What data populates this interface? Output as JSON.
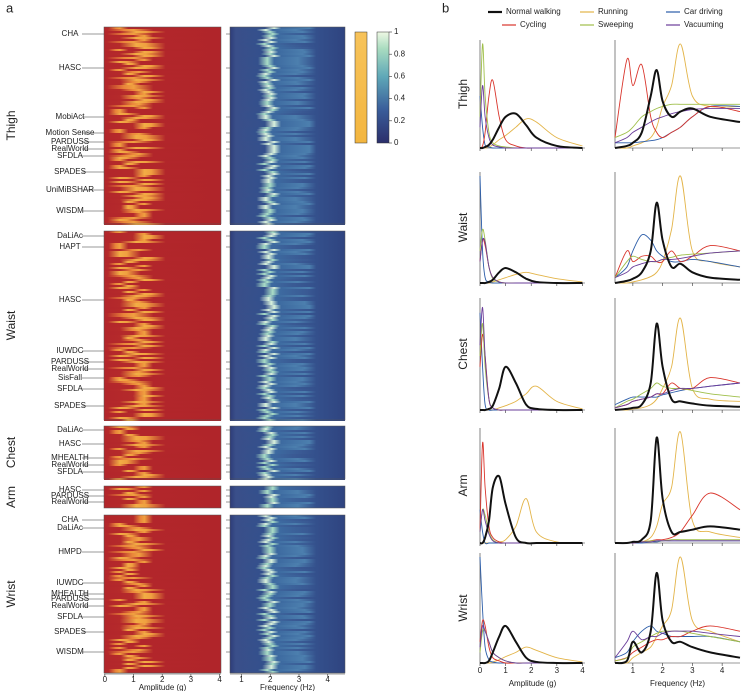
{
  "chart_data": [
    {
      "type": "heatmap",
      "panel": "a",
      "groups": [
        {
          "position": "Thigh",
          "datasets": [
            "CHA",
            "HASC",
            "MobiAct",
            "Motion Sense",
            "PARDUSS",
            "RealWorld",
            "SFDLA",
            "SPADES",
            "UniMiBSHAR",
            "WISDM"
          ]
        },
        {
          "position": "Waist",
          "datasets": [
            "DaLiAc",
            "HAPT",
            "HASC",
            "IUWDC",
            "PARDUSS",
            "RealWorld",
            "SisFall",
            "SFDLA",
            "SPADES"
          ]
        },
        {
          "position": "Chest",
          "datasets": [
            "DaLiAc",
            "HASC",
            "MHEALTH",
            "RealWorld",
            "SFDLA"
          ]
        },
        {
          "position": "Arm",
          "datasets": [
            "HASC",
            "PARDUSS",
            "RealWorld"
          ]
        },
        {
          "position": "Wrist",
          "datasets": [
            "CHA",
            "DaLiAc",
            "HMPD",
            "IUWDC",
            "MHEALTH",
            "PARDUSS",
            "RealWorld",
            "SFDLA",
            "SPADES",
            "WISDM"
          ]
        }
      ],
      "amplitude": {
        "xlabel": "Amplitude (g)",
        "xlim": [
          -0.03,
          4.05
        ],
        "xticks": [
          0,
          1,
          2,
          3,
          4
        ]
      },
      "frequency": {
        "xlabel": "Frequency (Hz)",
        "xlim": [
          0.6,
          4.6
        ],
        "xticks": [
          1,
          2,
          3,
          4
        ]
      },
      "colorbar_ticks": [
        0,
        0.2,
        0.4,
        0.6,
        0.8,
        1
      ]
    },
    {
      "type": "line",
      "panel": "b",
      "series": [
        {
          "name": "Normal walking",
          "color": "#111111"
        },
        {
          "name": "Running",
          "color": "#e3b448"
        },
        {
          "name": "Car driving",
          "color": "#2a5ca8"
        },
        {
          "name": "Cycling",
          "color": "#d9342b"
        },
        {
          "name": "Sweeping",
          "color": "#9fbf4a"
        },
        {
          "name": "Vacuuming",
          "color": "#6a3d9a"
        }
      ],
      "rows": [
        "Thigh",
        "Waist",
        "Chest",
        "Arm",
        "Wrist"
      ],
      "ylim": [
        0,
        1
      ],
      "amplitude": {
        "xlabel": "Amplitude (g)",
        "xlim": [
          0,
          4.1
        ],
        "xticks": [
          0,
          1,
          2,
          3,
          4
        ],
        "x": [
          0,
          0.1,
          0.2,
          0.35,
          0.5,
          0.75,
          1,
          1.4,
          1.8,
          2.2,
          3,
          4
        ]
      },
      "frequency": {
        "xlabel": "Frequency (Hz)",
        "xlim": [
          0.4,
          4.6
        ],
        "xticks": [
          1,
          2,
          3,
          4
        ],
        "x": [
          0.4,
          0.8,
          1.0,
          1.3,
          1.6,
          1.8,
          2.0,
          2.3,
          2.6,
          3.0,
          3.6,
          4.6
        ]
      },
      "amp_values": [
        [
          [
            0,
            0,
            0.01,
            0.03,
            0.08,
            0.2,
            0.3,
            0.33,
            0.22,
            0.1,
            0.02,
            0
          ],
          [
            0,
            0,
            0,
            0.01,
            0.03,
            0.08,
            0.12,
            0.2,
            0.28,
            0.25,
            0.1,
            0.02
          ],
          [
            0.5,
            0.2,
            0.03,
            0.01,
            0,
            0,
            0,
            0,
            0,
            0,
            0,
            0
          ],
          [
            0,
            0.02,
            0.15,
            0.5,
            0.65,
            0.3,
            0.08,
            0.02,
            0,
            0,
            0,
            0
          ],
          [
            0.3,
            1,
            0.5,
            0.15,
            0.05,
            0.02,
            0.01,
            0,
            0,
            0,
            0,
            0
          ],
          [
            0.2,
            0.6,
            0.3,
            0.1,
            0.03,
            0.01,
            0,
            0,
            0,
            0,
            0,
            0
          ]
        ],
        [
          [
            0,
            0,
            0,
            0.01,
            0.03,
            0.1,
            0.14,
            0.1,
            0.04,
            0.01,
            0,
            0
          ],
          [
            0,
            0,
            0,
            0,
            0.01,
            0.03,
            0.05,
            0.08,
            0.1,
            0.08,
            0.04,
            0.01
          ],
          [
            1,
            0.3,
            0.05,
            0.01,
            0,
            0,
            0,
            0,
            0,
            0,
            0,
            0
          ],
          [
            0.2,
            0.4,
            0.35,
            0.15,
            0.05,
            0.01,
            0,
            0,
            0,
            0,
            0,
            0
          ],
          [
            0.3,
            0.5,
            0.4,
            0.15,
            0.04,
            0.01,
            0,
            0,
            0,
            0,
            0,
            0
          ],
          [
            0.2,
            0.4,
            0.38,
            0.15,
            0.05,
            0.01,
            0,
            0,
            0,
            0,
            0,
            0
          ]
        ],
        [
          [
            0,
            0,
            0,
            0.01,
            0.04,
            0.2,
            0.4,
            0.25,
            0.05,
            0.01,
            0,
            0
          ],
          [
            0,
            0,
            0,
            0,
            0,
            0.02,
            0.04,
            0.08,
            0.15,
            0.22,
            0.08,
            0.01
          ],
          [
            0.9,
            0.4,
            0.05,
            0,
            0,
            0,
            0,
            0,
            0,
            0,
            0,
            0
          ],
          [
            0.4,
            0.7,
            0.5,
            0.1,
            0.02,
            0,
            0,
            0,
            0,
            0,
            0,
            0
          ],
          [
            0.5,
            0.8,
            0.4,
            0.1,
            0.02,
            0,
            0,
            0,
            0,
            0,
            0,
            0
          ],
          [
            0.6,
            0.95,
            0.5,
            0.1,
            0.02,
            0,
            0,
            0,
            0,
            0,
            0,
            0
          ]
        ],
        [
          [
            0,
            0,
            0.05,
            0.2,
            0.5,
            0.6,
            0.35,
            0.05,
            0,
            0,
            0,
            0
          ],
          [
            0,
            0,
            0,
            0,
            0,
            0.01,
            0.03,
            0.15,
            0.4,
            0.1,
            0.01,
            0
          ],
          [
            0.3,
            0.1,
            0,
            0,
            0,
            0,
            0,
            0,
            0,
            0,
            0,
            0
          ],
          [
            0.1,
            0.9,
            0.5,
            0.15,
            0.05,
            0.01,
            0,
            0,
            0,
            0,
            0,
            0
          ],
          [
            0.1,
            0.3,
            0.25,
            0.1,
            0.03,
            0,
            0,
            0,
            0,
            0,
            0,
            0
          ],
          [
            0.1,
            0.3,
            0.2,
            0.08,
            0.02,
            0,
            0,
            0,
            0,
            0,
            0,
            0
          ]
        ],
        [
          [
            0,
            0,
            0,
            0.02,
            0.1,
            0.25,
            0.35,
            0.2,
            0.05,
            0.01,
            0,
            0
          ],
          [
            0,
            0,
            0,
            0,
            0.01,
            0.03,
            0.06,
            0.1,
            0.15,
            0.12,
            0.05,
            0.01
          ],
          [
            1,
            0.5,
            0.15,
            0.03,
            0.01,
            0,
            0,
            0,
            0,
            0,
            0,
            0
          ],
          [
            0.2,
            0.4,
            0.35,
            0.15,
            0.05,
            0.02,
            0,
            0,
            0,
            0,
            0,
            0
          ],
          [
            0.1,
            0.3,
            0.3,
            0.2,
            0.1,
            0.05,
            0.02,
            0,
            0,
            0,
            0,
            0
          ],
          [
            0.15,
            0.35,
            0.3,
            0.2,
            0.1,
            0.05,
            0.02,
            0,
            0,
            0,
            0,
            0
          ]
        ]
      ],
      "freq_values": [
        [
          [
            0,
            0.02,
            0.05,
            0.15,
            0.5,
            0.75,
            0.45,
            0.3,
            0.35,
            0.38,
            0.3,
            0.25
          ],
          [
            0,
            0,
            0.02,
            0.05,
            0.1,
            0.2,
            0.4,
            0.6,
            1,
            0.5,
            0.4,
            0.4
          ],
          [
            0.05,
            0.05,
            0.05,
            0.06,
            0.07,
            0.08,
            0.1,
            0.15,
            0.2,
            0.3,
            0.4,
            0.4
          ],
          [
            0.1,
            0.85,
            0.6,
            0.8,
            0.3,
            0.15,
            0.1,
            0.15,
            0.2,
            0.3,
            0.4,
            0.35
          ],
          [
            0.1,
            0.15,
            0.2,
            0.3,
            0.35,
            0.38,
            0.4,
            0.42,
            0.42,
            0.42,
            0.42,
            0.42
          ],
          [
            0.05,
            0.1,
            0.15,
            0.2,
            0.25,
            0.28,
            0.3,
            0.33,
            0.35,
            0.37,
            0.38,
            0.38
          ]
        ],
        [
          [
            0,
            0.02,
            0.04,
            0.1,
            0.3,
            0.75,
            0.4,
            0.15,
            0.18,
            0.1,
            0.05,
            0.03
          ],
          [
            0,
            0,
            0.01,
            0.03,
            0.06,
            0.1,
            0.2,
            0.5,
            1,
            0.3,
            0.2,
            0.15
          ],
          [
            0.05,
            0.15,
            0.3,
            0.45,
            0.4,
            0.3,
            0.25,
            0.2,
            0.2,
            0.22,
            0.2,
            0.15
          ],
          [
            0.05,
            0.3,
            0.2,
            0.25,
            0.25,
            0.2,
            0.2,
            0.3,
            0.2,
            0.25,
            0.35,
            0.3
          ],
          [
            0.05,
            0.2,
            0.25,
            0.22,
            0.2,
            0.2,
            0.22,
            0.24,
            0.26,
            0.27,
            0.28,
            0.3
          ],
          [
            0.05,
            0.1,
            0.15,
            0.18,
            0.2,
            0.2,
            0.22,
            0.22,
            0.23,
            0.25,
            0.28,
            0.3
          ]
        ],
        [
          [
            0,
            0.01,
            0.02,
            0.05,
            0.25,
            0.8,
            0.4,
            0.1,
            0.08,
            0.06,
            0.04,
            0.03
          ],
          [
            0,
            0,
            0.01,
            0.02,
            0.05,
            0.1,
            0.2,
            0.4,
            0.85,
            0.2,
            0.1,
            0.08
          ],
          [
            0.05,
            0.1,
            0.12,
            0.12,
            0.12,
            0.12,
            0.14,
            0.16,
            0.18,
            0.2,
            0.22,
            0.25
          ],
          [
            0.02,
            0.05,
            0.08,
            0.1,
            0.12,
            0.15,
            0.15,
            0.25,
            0.2,
            0.2,
            0.3,
            0.25
          ],
          [
            0.02,
            0.08,
            0.1,
            0.15,
            0.2,
            0.25,
            0.22,
            0.2,
            0.2,
            0.18,
            0.15,
            0.12
          ],
          [
            0.02,
            0.05,
            0.08,
            0.1,
            0.12,
            0.15,
            0.15,
            0.18,
            0.2,
            0.2,
            0.22,
            0.25
          ]
        ],
        [
          [
            0,
            0,
            0.01,
            0.03,
            0.2,
            0.95,
            0.4,
            0.1,
            0.1,
            0.12,
            0.15,
            0.12
          ],
          [
            0,
            0,
            0,
            0.01,
            0.05,
            0.15,
            0.35,
            0.5,
            1,
            0.2,
            0.1,
            0.05
          ],
          [
            0,
            0,
            0,
            0,
            0.01,
            0.01,
            0.02,
            0.02,
            0.02,
            0.02,
            0.02,
            0.02
          ],
          [
            0,
            0,
            0,
            0.01,
            0.02,
            0.03,
            0.03,
            0.05,
            0.1,
            0.25,
            0.45,
            0.3
          ],
          [
            0,
            0,
            0.01,
            0.01,
            0.02,
            0.02,
            0.02,
            0.03,
            0.03,
            0.03,
            0.03,
            0.03
          ],
          [
            0,
            0,
            0,
            0.01,
            0.01,
            0.02,
            0.02,
            0.02,
            0.02,
            0.02,
            0.02,
            0.02
          ]
        ],
        [
          [
            0,
            0.02,
            0.2,
            0.1,
            0.3,
            0.85,
            0.4,
            0.2,
            0.2,
            0.15,
            0.1,
            0.05
          ],
          [
            0,
            0,
            0.05,
            0.1,
            0.15,
            0.25,
            0.35,
            0.5,
            1,
            0.4,
            0.3,
            0.2
          ],
          [
            0.05,
            0.1,
            0.2,
            0.3,
            0.35,
            0.3,
            0.28,
            0.25,
            0.25,
            0.25,
            0.25,
            0.2
          ],
          [
            0.02,
            0.05,
            0.1,
            0.15,
            0.2,
            0.22,
            0.22,
            0.25,
            0.25,
            0.3,
            0.35,
            0.3
          ],
          [
            0.02,
            0.05,
            0.15,
            0.2,
            0.25,
            0.28,
            0.3,
            0.3,
            0.3,
            0.28,
            0.25,
            0.2
          ],
          [
            0.05,
            0.2,
            0.3,
            0.22,
            0.25,
            0.25,
            0.28,
            0.3,
            0.3,
            0.3,
            0.28,
            0.25
          ]
        ]
      ]
    }
  ]
}
